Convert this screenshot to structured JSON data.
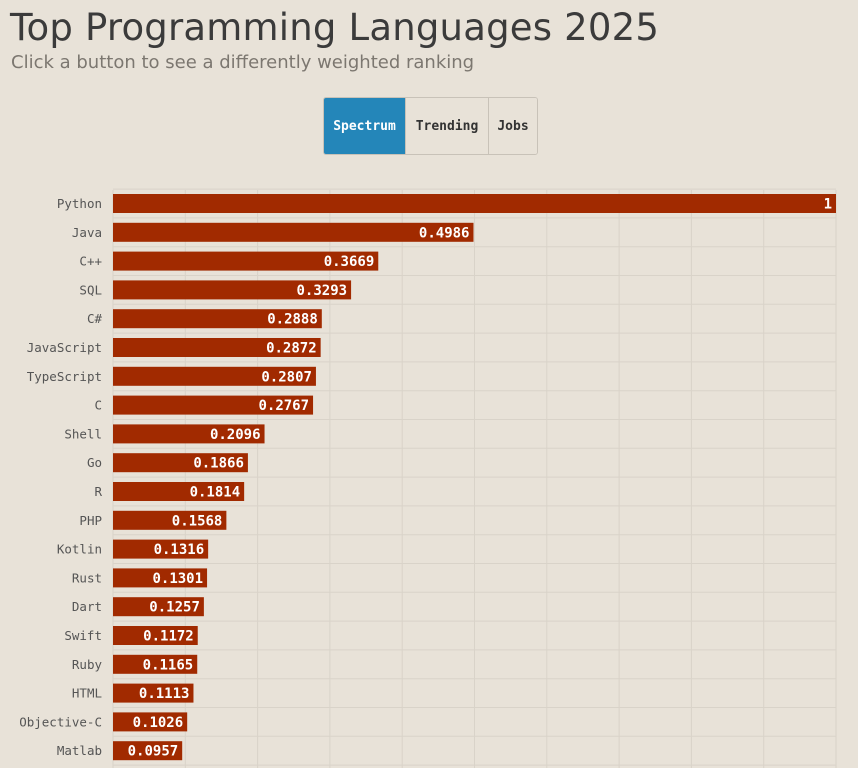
{
  "header": {
    "title": "Top Programming Languages 2025",
    "subtitle": "Click a button to see a differently weighted ranking"
  },
  "buttons": [
    {
      "label": "Spectrum",
      "active": true
    },
    {
      "label": "Trending",
      "active": false
    },
    {
      "label": "Jobs",
      "active": false
    }
  ],
  "colors": {
    "background": "#e8e2d8",
    "bar": "#a12a00",
    "active_button": "#2486b9",
    "gridline": "#d9d3c9"
  },
  "chart_data": {
    "type": "bar",
    "orientation": "horizontal",
    "categories": [
      "Python",
      "Java",
      "C++",
      "SQL",
      "C#",
      "JavaScript",
      "TypeScript",
      "C",
      "Shell",
      "Go",
      "R",
      "PHP",
      "Kotlin",
      "Rust",
      "Dart",
      "Swift",
      "Ruby",
      "HTML",
      "Objective-C",
      "Matlab"
    ],
    "values": [
      1,
      0.4986,
      0.3669,
      0.3293,
      0.2888,
      0.2872,
      0.2807,
      0.2767,
      0.2096,
      0.1866,
      0.1814,
      0.1568,
      0.1316,
      0.1301,
      0.1257,
      0.1172,
      0.1165,
      0.1113,
      0.1026,
      0.0957
    ],
    "value_labels": [
      "1",
      "0.4986",
      "0.3669",
      "0.3293",
      "0.2888",
      "0.2872",
      "0.2807",
      "0.2767",
      "0.2096",
      "0.1866",
      "0.1814",
      "0.1568",
      "0.1316",
      "0.1301",
      "0.1257",
      "0.1172",
      "0.1165",
      "0.1113",
      "0.1026",
      "0.0957"
    ],
    "xlim": [
      0,
      1
    ],
    "grid": true,
    "title": "",
    "xlabel": "",
    "ylabel": ""
  }
}
